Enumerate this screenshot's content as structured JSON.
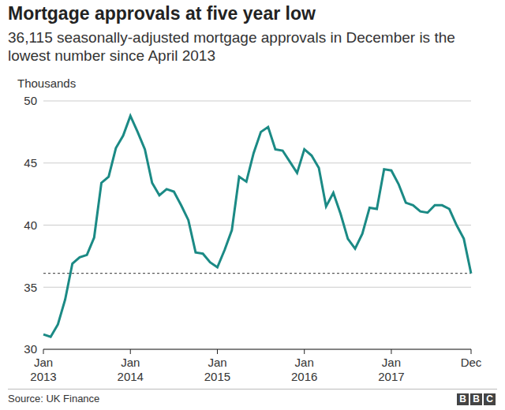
{
  "chart_data": {
    "type": "line",
    "title": "Mortgage approvals at five year low",
    "subtitle": "36,115 seasonally-adjusted mortgage approvals in December is the lowest number since April 2013",
    "y_label": "Thousands",
    "source": "Source: UK Finance",
    "logo": "BBC",
    "color": "#1b8a85",
    "grid": true,
    "threshold": 36.115,
    "ylim": [
      30,
      50
    ],
    "yticks": [
      30,
      35,
      40,
      45,
      50
    ],
    "categories": [
      "Jan 2013",
      null,
      null,
      null,
      null,
      null,
      null,
      null,
      null,
      null,
      null,
      null,
      "Jan 2014",
      null,
      null,
      null,
      null,
      null,
      null,
      null,
      null,
      null,
      null,
      null,
      "Jan 2015",
      null,
      null,
      null,
      null,
      null,
      null,
      null,
      null,
      null,
      null,
      null,
      "Jan 2016",
      null,
      null,
      null,
      null,
      null,
      null,
      null,
      null,
      null,
      null,
      null,
      "Jan 2017",
      null,
      null,
      null,
      null,
      null,
      null,
      null,
      null,
      null,
      null,
      "Dec"
    ],
    "values": [
      31.2,
      31.0,
      32.0,
      34.0,
      36.9,
      37.4,
      37.6,
      39.0,
      43.4,
      43.9,
      46.2,
      47.2,
      48.8,
      47.5,
      46.1,
      43.4,
      42.4,
      42.9,
      42.7,
      41.6,
      40.4,
      37.8,
      37.7,
      37.0,
      36.6,
      38.0,
      39.6,
      43.9,
      43.5,
      45.8,
      47.5,
      47.9,
      46.1,
      46.0,
      45.1,
      44.2,
      46.1,
      45.6,
      44.6,
      41.5,
      42.6,
      40.9,
      38.9,
      38.1,
      39.3,
      41.4,
      41.3,
      44.5,
      44.4,
      43.3,
      41.8,
      41.6,
      41.1,
      41.0,
      41.6,
      41.6,
      41.3,
      40.0,
      38.9,
      36.115
    ]
  }
}
